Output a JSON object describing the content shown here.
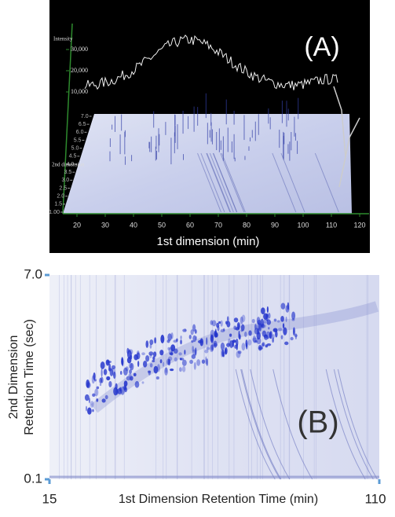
{
  "chart_data": [
    {
      "type": "surface",
      "annotation": "(A)",
      "xlabel": "1st dimension (min)",
      "ylabel": "2nd dimension",
      "zlabel": "Intensity",
      "xlim": [
        15,
        125
      ],
      "xticks": [
        20,
        30,
        40,
        50,
        60,
        70,
        80,
        90,
        100,
        110,
        120
      ],
      "ylim": [
        1,
        7
      ],
      "yticks": [
        {
          "value": 1,
          "label": "1.00"
        },
        1.5,
        {
          "value": 2,
          "label": "2.0"
        },
        2.5,
        {
          "value": 3,
          "label": "3.0"
        },
        3.5,
        {
          "value": 4,
          "label": "4.0"
        },
        4.5,
        {
          "value": 5,
          "label": "5.0"
        },
        5.5,
        {
          "value": 6,
          "label": "6.0"
        },
        6.5,
        {
          "value": 7,
          "label": "7.0"
        }
      ],
      "zlim": [
        0,
        40000
      ],
      "zticks": [
        {
          "value": 10000,
          "label": "10,000"
        },
        {
          "value": 20000,
          "label": "20,000"
        },
        {
          "value": 30000,
          "label": "30,000"
        }
      ]
    },
    {
      "type": "heatmap",
      "annotation": "(B)",
      "xlabel": "1st Dimension Retention Time (min)",
      "ylabel": [
        "2nd Dimension",
        "Retention Time (sec)"
      ],
      "xlim": [
        15,
        110
      ],
      "xticks": [
        15,
        110
      ],
      "ylim": [
        0.1,
        7
      ],
      "yticks": [
        0.1,
        {
          "value": 7,
          "label": "7.0"
        }
      ]
    }
  ]
}
